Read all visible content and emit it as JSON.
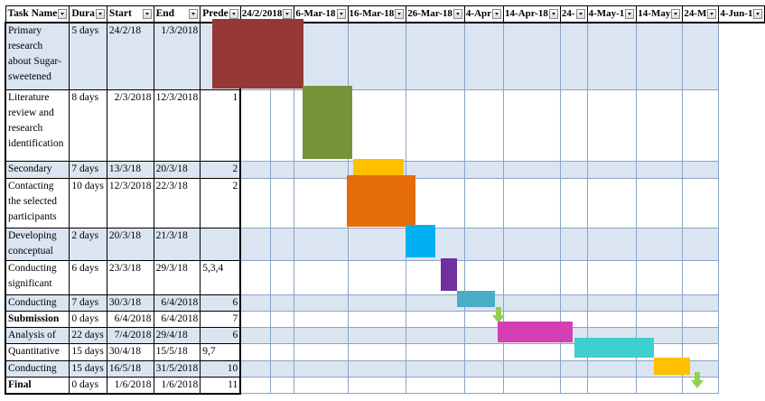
{
  "columns": {
    "task": "Task Name",
    "duration": "Dura",
    "start": "Start",
    "end": "End",
    "pred": "Prede"
  },
  "timeline_headers": [
    "24/2/2018",
    "6-Mar-18",
    "16-Mar-18",
    "26-Mar-18",
    "4-Apr",
    "14-Apr-18",
    "24-",
    "4-May-1",
    "14-May",
    "24-M",
    "4-Jun-1"
  ],
  "tasks": [
    {
      "name": "Primary research about Sugar-sweetened",
      "duration": "5 days",
      "start": "24/2/18",
      "end": "1/3/2018",
      "pred": ""
    },
    {
      "name": "Literature review and research identification",
      "duration": "8 days",
      "start": "2/3/2018",
      "end": "12/3/2018",
      "pred": "1"
    },
    {
      "name": "Secondary",
      "duration": "7 days",
      "start": "13/3/18",
      "end": "20/3/18",
      "pred": "2"
    },
    {
      "name": "Contacting the selected participants",
      "duration": "10 days",
      "start": "12/3/2018",
      "end": "22/3/18",
      "pred": "2"
    },
    {
      "name": "Developing conceptual",
      "duration": "2 days",
      "start": "20/3/18",
      "end": "21/3/18",
      "pred": ""
    },
    {
      "name": "Conducting significant",
      "duration": "6 days",
      "start": "23/3/18",
      "end": "29/3/18",
      "pred": "5,3,4"
    },
    {
      "name": "Conducting",
      "duration": "7 days",
      "start": "30/3/18",
      "end": "6/4/2018",
      "pred": "6"
    },
    {
      "name": "Submission",
      "duration": "0 days",
      "start": "6/4/2018",
      "end": "6/4/2018",
      "pred": "7"
    },
    {
      "name": "Analysis of",
      "duration": "22 days",
      "start": "7/4/2018",
      "end": "29/4/18",
      "pred": "6"
    },
    {
      "name": "Quantitative",
      "duration": "15 days",
      "start": "30/4/18",
      "end": "15/5/18",
      "pred": "9,7"
    },
    {
      "name": "Conducting",
      "duration": "15 days",
      "start": "16/5/18",
      "end": "31/5/2018",
      "pred": "10"
    },
    {
      "name": "Final",
      "duration": "0 days",
      "start": "1/6/2018",
      "end": "1/6/2018",
      "pred": "11"
    }
  ],
  "bar_colors": [
    "#953735",
    "#77933c",
    "#ffc000",
    "#e46c0a",
    "#00b0f0",
    "#7030a0",
    "#4bacc6",
    "#92d050",
    "#d63fb3",
    "#3fcfcf",
    "#ffc000",
    "#92d050"
  ]
}
